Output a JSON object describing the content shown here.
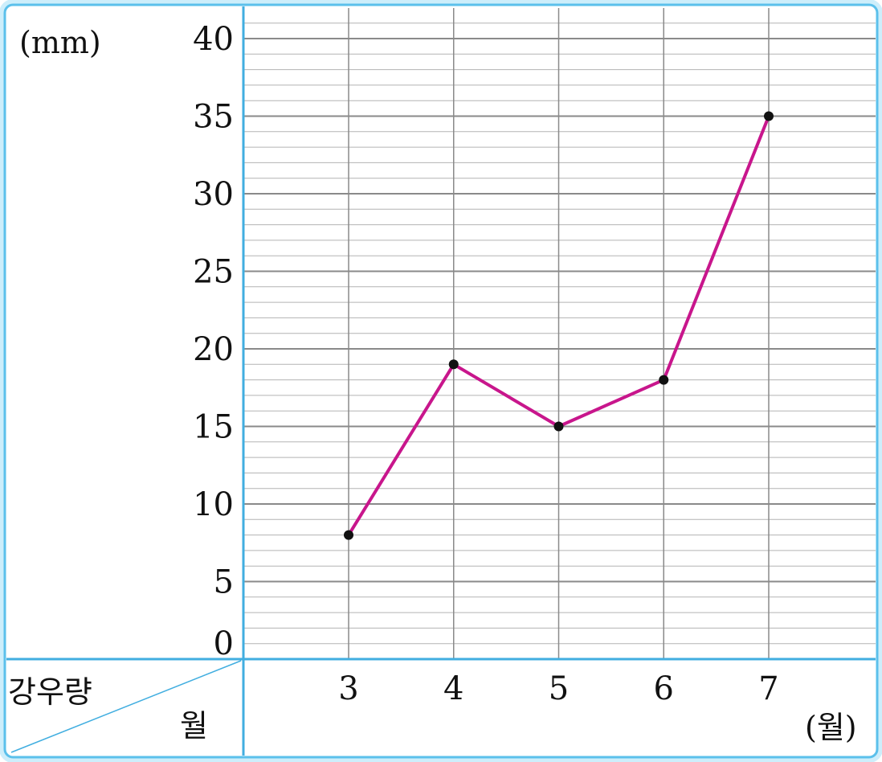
{
  "chart_data": {
    "type": "line",
    "y_unit": "(mm)",
    "x_unit": "(월)",
    "corner_top_label": "강우량",
    "corner_bottom_label": "월",
    "categories": [
      "3",
      "4",
      "5",
      "6",
      "7"
    ],
    "values": [
      8,
      19,
      15,
      18,
      35
    ],
    "y_ticks": [
      "0",
      "5",
      "10",
      "15",
      "20",
      "25",
      "30",
      "35",
      "40"
    ],
    "ylim": [
      0,
      40
    ],
    "minor_step": 1,
    "grid": true,
    "colors": {
      "line": "#c8168c",
      "marker": "#111111",
      "frame": "#5bc0eb",
      "frame_glow": "#cdeefb",
      "grid_major": "#8a8a8a",
      "grid_minor": "#b3b3b3",
      "axis": "#41aee0"
    }
  }
}
